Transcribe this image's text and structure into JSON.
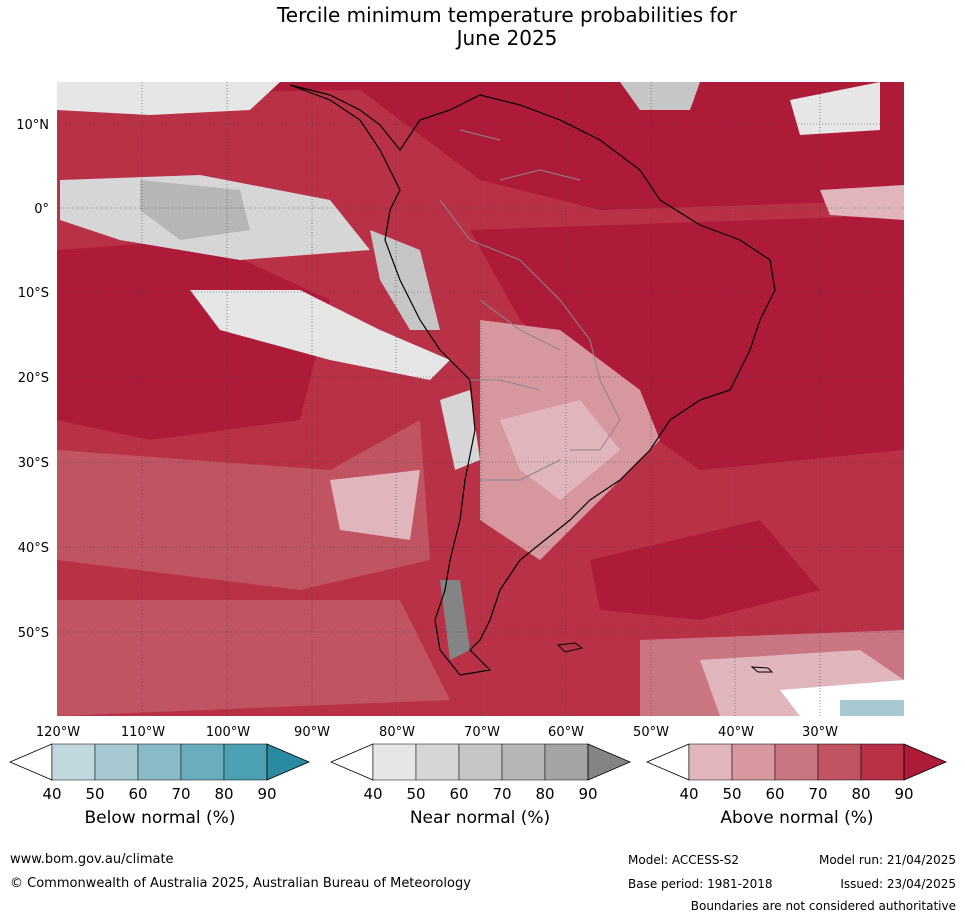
{
  "title_line1": "Tercile minimum temperature probabilities for",
  "title_line2": "June 2025",
  "lat_labels": [
    "10°N",
    "0°",
    "10°S",
    "20°S",
    "30°S",
    "40°S",
    "50°S"
  ],
  "lon_labels": [
    "120°W",
    "110°W",
    "100°W",
    "90°W",
    "80°W",
    "70°W",
    "60°W",
    "50°W",
    "40°W",
    "30°W"
  ],
  "colorbars": [
    {
      "label": "Below normal (%)",
      "ticks": [
        "40",
        "50",
        "60",
        "70",
        "80",
        "90"
      ],
      "colors": [
        "#c0d8de",
        "#a6c9d2",
        "#8bbac7",
        "#6aaebd",
        "#4ba0b2",
        "#2a8aa0"
      ]
    },
    {
      "label": "Near normal (%)",
      "ticks": [
        "40",
        "50",
        "60",
        "70",
        "80",
        "90"
      ],
      "colors": [
        "#e6e6e6",
        "#d6d6d6",
        "#c6c6c6",
        "#b6b6b6",
        "#a4a4a4",
        "#848484"
      ]
    },
    {
      "label": "Above normal (%)",
      "ticks": [
        "40",
        "50",
        "60",
        "70",
        "80",
        "90"
      ],
      "colors": [
        "#e1b5bc",
        "#d6979f",
        "#ca7682",
        "#c15463",
        "#b93147",
        "#ae1b38"
      ]
    }
  ],
  "footer": {
    "website": "www.bom.gov.au/climate",
    "copyright": "© Commonwealth of Australia 2025, Australian Bureau of Meteorology",
    "model": "Model: ACCESS-S2",
    "model_run": "Model run: 21/04/2025",
    "base_period": "Base period: 1981-2018",
    "issued": "Issued: 23/04/2025",
    "disclaimer": "Boundaries are not considered authoritative"
  }
}
